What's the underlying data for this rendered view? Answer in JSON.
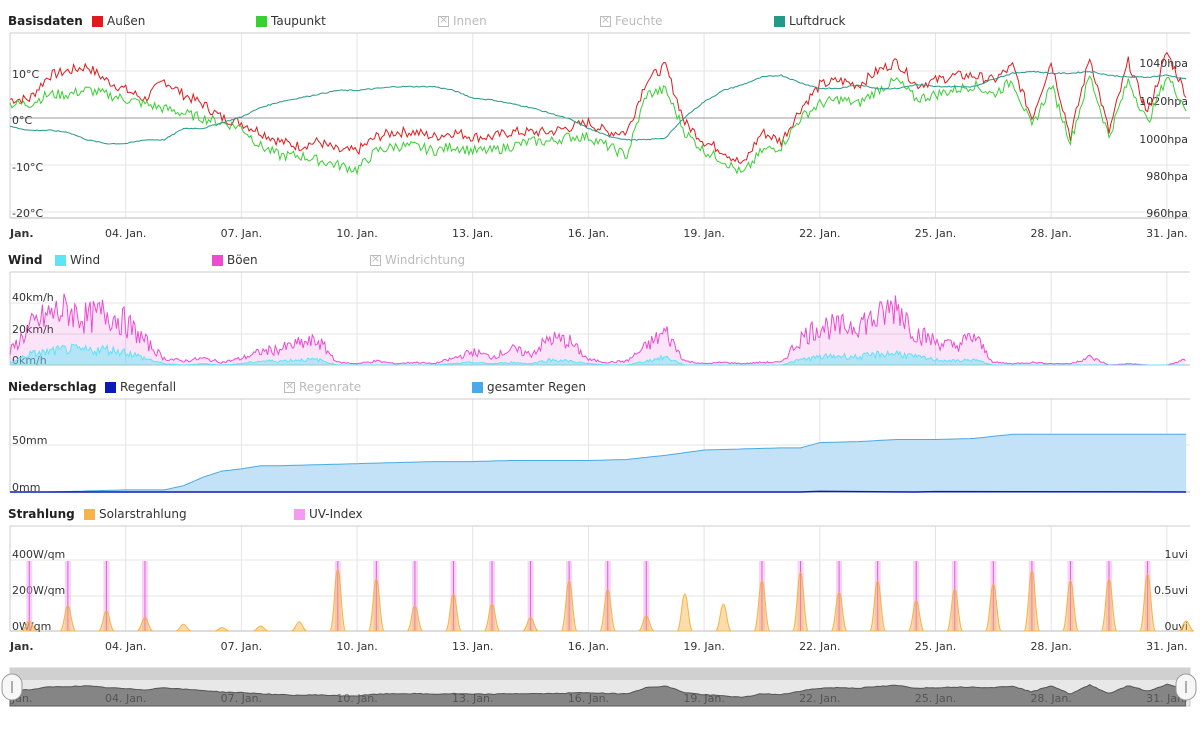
{
  "panels": [
    {
      "title": "Basisdaten",
      "legend": [
        {
          "label": "Außen",
          "color": "#e11b1b",
          "active": true
        },
        {
          "label": "Taupunkt",
          "color": "#39d032",
          "active": true
        },
        {
          "label": "Innen",
          "color": "#bbbbbb",
          "active": false
        },
        {
          "label": "Feuchte",
          "color": "#bbbbbb",
          "active": false
        },
        {
          "label": "Luftdruck",
          "color": "#23998a",
          "active": true
        }
      ],
      "y_left_ticks": [
        "10°C",
        "0°C",
        "-10°C",
        "-20°C"
      ],
      "y_right_ticks": [
        "1040hpa",
        "1020hpa",
        "1000hpa",
        "980hpa",
        "960hpa"
      ]
    },
    {
      "title": "Wind",
      "legend": [
        {
          "label": "Wind",
          "color": "#5de4f5",
          "active": true
        },
        {
          "label": "Böen",
          "color": "#ee4bd2",
          "active": true
        },
        {
          "label": "Windrichtung",
          "color": "#bbbbbb",
          "active": false
        }
      ],
      "y_left_ticks": [
        "40km/h",
        "20km/h",
        "0km/h"
      ]
    },
    {
      "title": "Niederschlag",
      "legend": [
        {
          "label": "Regenfall",
          "color": "#0b1bb5",
          "active": true
        },
        {
          "label": "Regenrate",
          "color": "#bbbbbb",
          "active": false
        },
        {
          "label": "gesamter Regen",
          "color": "#4aa9e6",
          "active": true
        }
      ],
      "y_left_ticks": [
        "50mm",
        "0mm"
      ]
    },
    {
      "title": "Strahlung",
      "legend": [
        {
          "label": "Solarstrahlung",
          "color": "#f7b347",
          "active": true
        },
        {
          "label": "UV-Index",
          "color": "#f49af2",
          "active": true
        }
      ],
      "y_left_ticks": [
        "400W/qm",
        "200W/qm",
        "0W/qm"
      ],
      "y_right_ticks": [
        "1uvi",
        "0.5uvi",
        "0uvi"
      ]
    }
  ],
  "x_labels": [
    "Jan.",
    "04. Jan.",
    "07. Jan.",
    "10. Jan.",
    "13. Jan.",
    "16. Jan.",
    "19. Jan.",
    "22. Jan.",
    "25. Jan.",
    "28. Jan.",
    "31. Jan."
  ],
  "chart_data": [
    {
      "type": "line",
      "title": "Basisdaten",
      "x_unit": "day of January",
      "ylim": [
        -20,
        20
      ],
      "y2lim": [
        960,
        1050
      ],
      "series": [
        {
          "name": "Außen",
          "color": "#e11b1b",
          "axis": "°C",
          "x": [
            1,
            1.5,
            2,
            2.5,
            3,
            3.5,
            4,
            4.5,
            5,
            5.5,
            6,
            6.5,
            7,
            7.5,
            8,
            8.5,
            9,
            9.5,
            10,
            10.5,
            11,
            11.5,
            12,
            12.5,
            13,
            13.5,
            14,
            14.5,
            15,
            15.5,
            16,
            16.5,
            17,
            17.5,
            18,
            18.5,
            19,
            19.5,
            20,
            20.5,
            21,
            21.5,
            22,
            22.5,
            23,
            23.5,
            24,
            24.5,
            25,
            25.5,
            26,
            26.5,
            27,
            27.5,
            28,
            28.5,
            29,
            29.5,
            30,
            30.5,
            31,
            31.5
          ],
          "values": [
            4,
            4,
            9,
            10,
            11,
            8,
            6,
            4,
            8,
            5,
            3,
            0,
            -1,
            -3,
            -5,
            -6,
            -5,
            -7,
            -7,
            -4,
            -3,
            -3,
            -4,
            -3,
            -4,
            -4,
            -3,
            -3,
            -3,
            -2,
            -1,
            -3,
            -3,
            8,
            11,
            -1,
            -5,
            -7,
            -10,
            -3,
            -5,
            2,
            7,
            8,
            7,
            10,
            12,
            7,
            8,
            9,
            9,
            8,
            11,
            0,
            12,
            -4,
            13,
            -3,
            12,
            1,
            14,
            5
          ]
        },
        {
          "name": "Taupunkt",
          "color": "#39d032",
          "axis": "°C",
          "x": [
            1,
            1.5,
            2,
            2.5,
            3,
            3.5,
            4,
            4.5,
            5,
            5.5,
            6,
            6.5,
            7,
            7.5,
            8,
            8.5,
            9,
            9.5,
            10,
            10.5,
            11,
            11.5,
            12,
            12.5,
            13,
            13.5,
            14,
            14.5,
            15,
            15.5,
            16,
            16.5,
            17,
            17.5,
            18,
            18.5,
            19,
            19.5,
            20,
            20.5,
            21,
            21.5,
            22,
            22.5,
            23,
            23.5,
            24,
            24.5,
            25,
            25.5,
            26,
            26.5,
            27,
            27.5,
            28,
            28.5,
            29,
            29.5,
            30,
            30.5,
            31,
            31.5
          ],
          "values": [
            3,
            3,
            5,
            5,
            6,
            5,
            4,
            3,
            2,
            1,
            0,
            -1,
            -2,
            -6,
            -8,
            -8,
            -9,
            -10,
            -11,
            -7,
            -6,
            -6,
            -7,
            -6,
            -7,
            -7,
            -6,
            -5,
            -5,
            -4,
            -4,
            -6,
            -8,
            5,
            6,
            -3,
            -7,
            -9,
            -12,
            -7,
            -6,
            0,
            3,
            4,
            3,
            6,
            8,
            4,
            5,
            6,
            7,
            5,
            8,
            -2,
            7,
            -5,
            9,
            -4,
            8,
            -1,
            9,
            2
          ]
        },
        {
          "name": "Luftdruck",
          "color": "#23998a",
          "axis": "hpa",
          "x": [
            1,
            1.5,
            2,
            2.5,
            3,
            3.5,
            4,
            4.5,
            5,
            5.5,
            6,
            6.5,
            7,
            7.5,
            8,
            8.5,
            9,
            9.5,
            10,
            10.5,
            11,
            11.5,
            12,
            12.5,
            13,
            13.5,
            14,
            14.5,
            15,
            15.5,
            16,
            16.5,
            17,
            17.5,
            18,
            18.5,
            19,
            19.5,
            20,
            20.5,
            21,
            21.5,
            22,
            22.5,
            23,
            23.5,
            24,
            24.5,
            25,
            25.5,
            26,
            26.5,
            27,
            27.5,
            28,
            28.5,
            29,
            29.5,
            30,
            30.5,
            31,
            31.5
          ],
          "values": [
            1005,
            1003,
            1003,
            1002,
            998,
            996,
            996,
            998,
            998,
            1004,
            1004,
            1007,
            1010,
            1015,
            1018,
            1020,
            1022,
            1024,
            1024,
            1025,
            1026,
            1026,
            1026,
            1024,
            1020,
            1019,
            1017,
            1015,
            1012,
            1009,
            1004,
            1000,
            998,
            998,
            999,
            1010,
            1018,
            1024,
            1027,
            1031,
            1032,
            1028,
            1025,
            1025,
            1027,
            1025,
            1025,
            1027,
            1026,
            1026,
            1026,
            1030,
            1033,
            1034,
            1033,
            1033,
            1034,
            1032,
            1031,
            1031,
            1032,
            1030
          ]
        }
      ]
    },
    {
      "type": "area",
      "title": "Wind",
      "ylim": [
        0,
        50
      ],
      "series": [
        {
          "name": "Wind",
          "color": "#5de4f5",
          "x": [
            1,
            1.5,
            2,
            2.5,
            3,
            3.5,
            4,
            4.5,
            5,
            5.5,
            6,
            6.5,
            7,
            7.5,
            8,
            8.5,
            9,
            9.5,
            10,
            10.5,
            11,
            11.5,
            12,
            12.5,
            13,
            13.5,
            14,
            14.5,
            15,
            15.5,
            16,
            16.5,
            17,
            17.5,
            18,
            18.5,
            19,
            19.5,
            20,
            20.5,
            21,
            21.5,
            22,
            22.5,
            23,
            23.5,
            24,
            24.5,
            25,
            25.5,
            26,
            26.5,
            27,
            27.5,
            28,
            28.5,
            29,
            29.5,
            30,
            30.5,
            31,
            31.5
          ],
          "values": [
            2,
            8,
            10,
            12,
            11,
            12,
            10,
            5,
            1,
            0,
            1,
            0,
            1,
            3,
            3,
            4,
            4,
            0,
            0,
            0,
            0,
            0,
            0,
            1,
            2,
            1,
            2,
            1,
            4,
            3,
            1,
            0,
            0,
            3,
            6,
            0,
            0,
            0,
            0,
            0,
            0,
            4,
            6,
            7,
            6,
            8,
            9,
            6,
            4,
            3,
            4,
            0,
            0,
            0,
            0,
            0,
            0,
            0,
            0,
            0,
            0,
            0
          ]
        },
        {
          "name": "Böen",
          "color": "#ee4bd2",
          "x": [
            1,
            1.5,
            2,
            2.5,
            3,
            3.5,
            4,
            4.5,
            5,
            5.5,
            6,
            6.5,
            7,
            7.5,
            8,
            8.5,
            9,
            9.5,
            10,
            10.5,
            11,
            11.5,
            12,
            12.5,
            13,
            13.5,
            14,
            14.5,
            15,
            15.5,
            16,
            16.5,
            17,
            17.5,
            18,
            18.5,
            19,
            19.5,
            20,
            20.5,
            21,
            21.5,
            22,
            22.5,
            23,
            23.5,
            24,
            24.5,
            25,
            25.5,
            26,
            26.5,
            27,
            27.5,
            28,
            28.5,
            29,
            29.5,
            30,
            30.5,
            31,
            31.5
          ],
          "values": [
            10,
            28,
            38,
            42,
            35,
            40,
            32,
            18,
            5,
            3,
            5,
            2,
            5,
            10,
            12,
            16,
            18,
            2,
            1,
            3,
            1,
            2,
            1,
            5,
            10,
            6,
            12,
            8,
            20,
            18,
            4,
            2,
            3,
            14,
            25,
            3,
            1,
            2,
            1,
            2,
            2,
            20,
            30,
            28,
            32,
            35,
            46,
            24,
            18,
            14,
            22,
            2,
            1,
            2,
            1,
            1,
            6,
            0,
            1,
            0,
            0,
            4
          ]
        }
      ]
    },
    {
      "type": "area",
      "title": "Niederschlag",
      "ylim": [
        0,
        80
      ],
      "series": [
        {
          "name": "gesamter Regen",
          "color": "#4aa9e6",
          "x": [
            1,
            2,
            3,
            4,
            5,
            5.5,
            6,
            6.5,
            7,
            7.5,
            8,
            9,
            10,
            11,
            12,
            13,
            14,
            15,
            16,
            17,
            18,
            19,
            20,
            21,
            21.5,
            22,
            23,
            24,
            25,
            26,
            27,
            28,
            29,
            30,
            31,
            31.5
          ],
          "values": [
            0,
            0,
            1,
            2,
            2,
            6,
            14,
            20,
            22,
            25,
            25,
            26,
            27,
            28,
            29,
            29,
            30,
            30,
            30,
            31,
            35,
            40,
            41,
            42,
            42,
            47,
            48,
            50,
            50,
            51,
            55,
            55,
            55,
            55,
            55,
            55
          ]
        },
        {
          "name": "Regenfall",
          "color": "#0b1bb5",
          "x": [
            1,
            21.5,
            22,
            24.5,
            25,
            31.5
          ],
          "values": [
            0,
            0,
            0.6,
            0,
            0.4,
            0
          ]
        }
      ]
    },
    {
      "type": "area",
      "title": "Strahlung",
      "ylim": [
        0,
        500
      ],
      "y2lim": [
        0,
        1
      ],
      "series": [
        {
          "name": "Solarstrahlung",
          "color": "#f7b347",
          "x": [
            1.5,
            2.5,
            3.5,
            4.5,
            5.5,
            6.5,
            7.5,
            8.5,
            9.5,
            10.5,
            11.5,
            12.5,
            13.5,
            14.5,
            15.5,
            16.5,
            17.5,
            18.5,
            19.5,
            20.5,
            21.5,
            22.5,
            23.5,
            24.5,
            25.5,
            26.5,
            27.5,
            28.5,
            29.5,
            30.5,
            31.5
          ],
          "values": [
            60,
            150,
            120,
            80,
            40,
            20,
            30,
            55,
            370,
            310,
            150,
            220,
            160,
            80,
            300,
            250,
            90,
            220,
            160,
            300,
            350,
            230,
            300,
            180,
            250,
            280,
            360,
            300,
            310,
            340,
            60
          ]
        },
        {
          "name": "UV-Index",
          "color": "#f49af2",
          "x": [
            1.5,
            2.5,
            3.5,
            4.5,
            9.5,
            10.5,
            11.5,
            12.5,
            13.5,
            14.5,
            15.5,
            16.5,
            17.5,
            20.5,
            21.5,
            22.5,
            23.5,
            24.5,
            25.5,
            26.5,
            27.5,
            28.5,
            29.5,
            30.5
          ],
          "values": [
            1,
            1,
            1,
            1,
            1,
            1,
            1,
            1,
            1,
            1,
            1,
            1,
            1,
            1,
            1,
            1,
            1,
            1,
            1,
            1,
            1,
            1,
            1,
            1
          ]
        }
      ]
    }
  ]
}
